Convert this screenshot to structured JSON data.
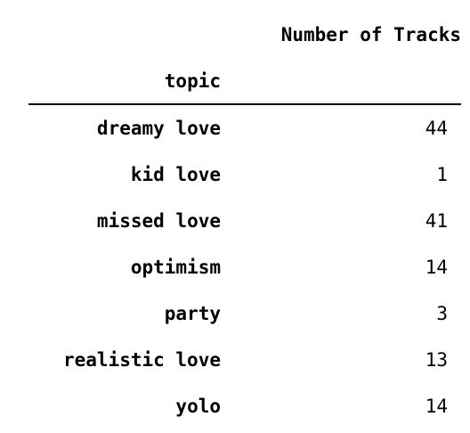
{
  "table": {
    "column_header": "Number of Tracks",
    "index_name": "topic",
    "rows": [
      {
        "label": "dreamy love",
        "value": "44"
      },
      {
        "label": "kid love",
        "value": "1"
      },
      {
        "label": "missed love",
        "value": "41"
      },
      {
        "label": "optimism",
        "value": "14"
      },
      {
        "label": "party",
        "value": "3"
      },
      {
        "label": "realistic love",
        "value": "13"
      },
      {
        "label": "yolo",
        "value": "14"
      }
    ]
  }
}
